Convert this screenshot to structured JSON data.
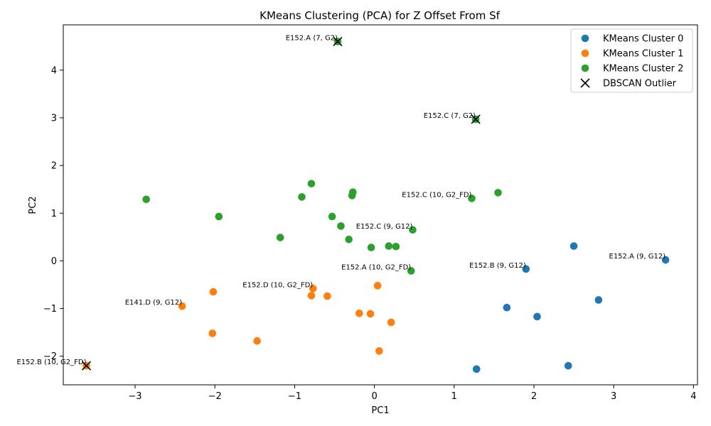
{
  "chart_data": {
    "type": "scatter",
    "title": "KMeans Clustering (PCA) for Z Offset From Sf",
    "xlabel": "PC1",
    "ylabel": "PC2",
    "xlim": [
      -3.9,
      4.05
    ],
    "ylim": [
      -2.6,
      4.95
    ],
    "xticks": [
      -3,
      -2,
      -1,
      0,
      1,
      2,
      3,
      4
    ],
    "yticks": [
      -2,
      -1,
      0,
      1,
      2,
      3,
      4
    ],
    "grid": false,
    "legend_position": "top-right",
    "series": [
      {
        "name": "KMeans Cluster 0",
        "color": "#1f77b4",
        "marker": "circle",
        "points": [
          {
            "x": 3.65,
            "y": 0.02
          },
          {
            "x": 2.5,
            "y": 0.31
          },
          {
            "x": 1.9,
            "y": -0.17
          },
          {
            "x": 2.81,
            "y": -0.82
          },
          {
            "x": 1.66,
            "y": -0.98
          },
          {
            "x": 2.04,
            "y": -1.17
          },
          {
            "x": 2.43,
            "y": -2.2
          },
          {
            "x": 1.28,
            "y": -2.27
          }
        ]
      },
      {
        "name": "KMeans Cluster 1",
        "color": "#ff7f0e",
        "marker": "circle",
        "points": [
          {
            "x": -2.02,
            "y": -0.65
          },
          {
            "x": -2.41,
            "y": -0.95
          },
          {
            "x": -2.03,
            "y": -1.52
          },
          {
            "x": -1.47,
            "y": -1.68
          },
          {
            "x": -0.77,
            "y": -0.58
          },
          {
            "x": -0.79,
            "y": -0.73
          },
          {
            "x": -0.59,
            "y": -0.74
          },
          {
            "x": 0.04,
            "y": -0.52
          },
          {
            "x": -0.19,
            "y": -1.1
          },
          {
            "x": -0.05,
            "y": -1.11
          },
          {
            "x": 0.21,
            "y": -1.29
          },
          {
            "x": 0.06,
            "y": -1.89
          },
          {
            "x": -3.61,
            "y": -2.2
          }
        ]
      },
      {
        "name": "KMeans Cluster 2",
        "color": "#2ca02c",
        "marker": "circle",
        "points": [
          {
            "x": -0.46,
            "y": 4.6
          },
          {
            "x": 1.27,
            "y": 2.97
          },
          {
            "x": -2.86,
            "y": 1.29
          },
          {
            "x": -1.95,
            "y": 0.93
          },
          {
            "x": -1.18,
            "y": 0.49
          },
          {
            "x": -0.79,
            "y": 1.62
          },
          {
            "x": -0.91,
            "y": 1.34
          },
          {
            "x": -0.27,
            "y": 1.44
          },
          {
            "x": -0.28,
            "y": 1.37
          },
          {
            "x": -0.53,
            "y": 0.93
          },
          {
            "x": -0.42,
            "y": 0.73
          },
          {
            "x": -0.32,
            "y": 0.45
          },
          {
            "x": -0.04,
            "y": 0.28
          },
          {
            "x": 0.18,
            "y": 0.31
          },
          {
            "x": 0.27,
            "y": 0.3
          },
          {
            "x": 0.48,
            "y": 0.65
          },
          {
            "x": 0.46,
            "y": -0.21
          },
          {
            "x": 1.22,
            "y": 1.31
          },
          {
            "x": 1.55,
            "y": 1.43
          }
        ]
      },
      {
        "name": "DBSCAN Outlier",
        "color": "#000000",
        "marker": "x",
        "points": [
          {
            "x": -0.46,
            "y": 4.6
          },
          {
            "x": 1.27,
            "y": 2.97
          },
          {
            "x": -3.61,
            "y": -2.2
          }
        ]
      }
    ],
    "annotations": [
      {
        "text": "E152.A (7, G2)",
        "x": -0.46,
        "y": 4.6
      },
      {
        "text": "E152.C (7, G2)",
        "x": 1.27,
        "y": 2.97
      },
      {
        "text": "E152.C (10, G2_FD)",
        "x": 1.22,
        "y": 1.31
      },
      {
        "text": "E152.C (9, G12)",
        "x": 0.48,
        "y": 0.65
      },
      {
        "text": "E152.A (9, G12)",
        "x": 3.65,
        "y": 0.02
      },
      {
        "text": "E152.B (9, G12)",
        "x": 1.9,
        "y": -0.17
      },
      {
        "text": "E152.A (10, G2_FD)",
        "x": 0.46,
        "y": -0.21
      },
      {
        "text": "E152.D (10, G2_FD)",
        "x": -0.77,
        "y": -0.58
      },
      {
        "text": "E141.D (9, G12)",
        "x": -2.41,
        "y": -0.95
      },
      {
        "text": "E152.B (10, G2_FD)",
        "x": -3.61,
        "y": -2.2
      }
    ]
  }
}
